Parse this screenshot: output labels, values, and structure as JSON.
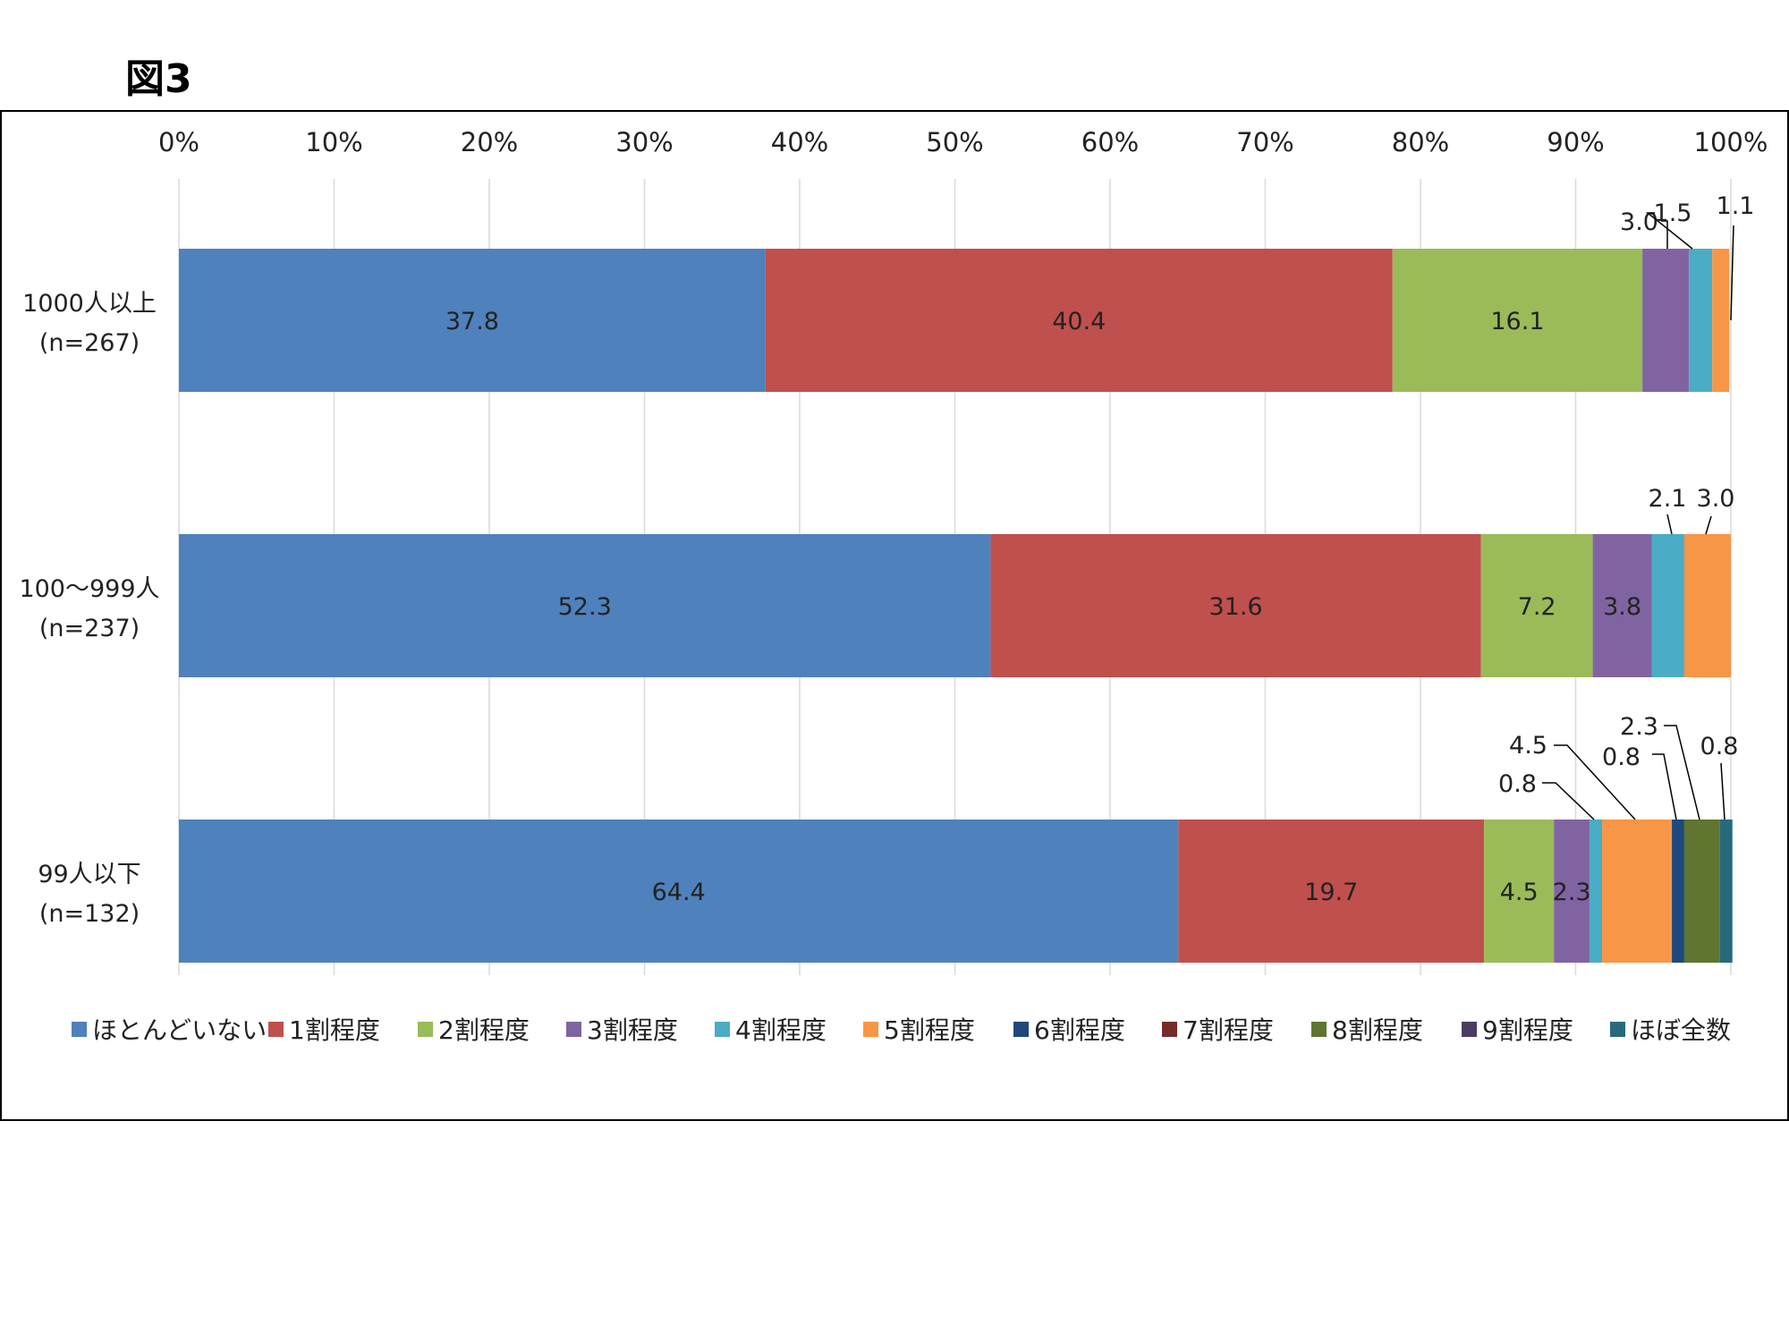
{
  "figure_title": "図3",
  "chart_data": {
    "type": "bar",
    "orientation": "horizontal",
    "stacked": true,
    "percent_stacked": true,
    "xlim": [
      0,
      100
    ],
    "x_ticks": [
      "0%",
      "10%",
      "20%",
      "30%",
      "40%",
      "50%",
      "60%",
      "70%",
      "80%",
      "90%",
      "100%"
    ],
    "grid": true,
    "legend_position": "bottom",
    "categories": [
      {
        "line1": "1000人以上",
        "line2": "(n=267)"
      },
      {
        "line1": "100～999人",
        "line2": "(n=237)"
      },
      {
        "line1": "99人以下",
        "line2": "(n=132)"
      }
    ],
    "series": [
      {
        "name": "ほとんどいない",
        "color": "#4F81BD",
        "values": [
          37.8,
          52.3,
          64.4
        ]
      },
      {
        "name": "1割程度",
        "color": "#C0504D",
        "values": [
          40.4,
          31.6,
          19.7
        ]
      },
      {
        "name": "2割程度",
        "color": "#9BBB59",
        "values": [
          16.1,
          7.2,
          4.5
        ]
      },
      {
        "name": "3割程度",
        "color": "#8064A2",
        "values": [
          3.0,
          3.8,
          2.3
        ]
      },
      {
        "name": "4割程度",
        "color": "#4BACC6",
        "values": [
          1.5,
          2.1,
          0.8
        ]
      },
      {
        "name": "5割程度",
        "color": "#F79646",
        "values": [
          1.1,
          3.0,
          4.5
        ]
      },
      {
        "name": "6割程度",
        "color": "#1F497D",
        "values": [
          0,
          0,
          0.8
        ]
      },
      {
        "name": "7割程度",
        "color": "#772C2A",
        "values": [
          0,
          0,
          0
        ]
      },
      {
        "name": "8割程度",
        "color": "#5F7530",
        "values": [
          0,
          0,
          2.3
        ]
      },
      {
        "name": "9割程度",
        "color": "#4D3B62",
        "values": [
          0,
          0,
          0
        ]
      },
      {
        "name": "ほぼ全数",
        "color": "#276A7C",
        "values": [
          0,
          0,
          0.8
        ]
      }
    ],
    "labels": [
      {
        "bar": 0,
        "series": 0,
        "text": "37.8"
      },
      {
        "bar": 0,
        "series": 1,
        "text": "40.4"
      },
      {
        "bar": 0,
        "series": 2,
        "text": "16.1"
      },
      {
        "bar": 0,
        "series": 3,
        "text": "3.0"
      },
      {
        "bar": 0,
        "series": 4,
        "text": "1.5"
      },
      {
        "bar": 0,
        "series": 5,
        "text": "1.1"
      },
      {
        "bar": 1,
        "series": 0,
        "text": "52.3"
      },
      {
        "bar": 1,
        "series": 1,
        "text": "31.6"
      },
      {
        "bar": 1,
        "series": 2,
        "text": "7.2"
      },
      {
        "bar": 1,
        "series": 3,
        "text": "3.8"
      },
      {
        "bar": 1,
        "series": 4,
        "text": "2.1"
      },
      {
        "bar": 1,
        "series": 5,
        "text": "3.0"
      },
      {
        "bar": 2,
        "series": 0,
        "text": "64.4"
      },
      {
        "bar": 2,
        "series": 1,
        "text": "19.7"
      },
      {
        "bar": 2,
        "series": 2,
        "text": "4.5"
      },
      {
        "bar": 2,
        "series": 3,
        "text": "2.3"
      },
      {
        "bar": 2,
        "series": 4,
        "text": "0.8"
      },
      {
        "bar": 2,
        "series": 5,
        "text": "4.5"
      },
      {
        "bar": 2,
        "series": 6,
        "text": "0.8"
      },
      {
        "bar": 2,
        "series": 8,
        "text": "2.3"
      },
      {
        "bar": 2,
        "series": 10,
        "text": "0.8"
      }
    ]
  }
}
